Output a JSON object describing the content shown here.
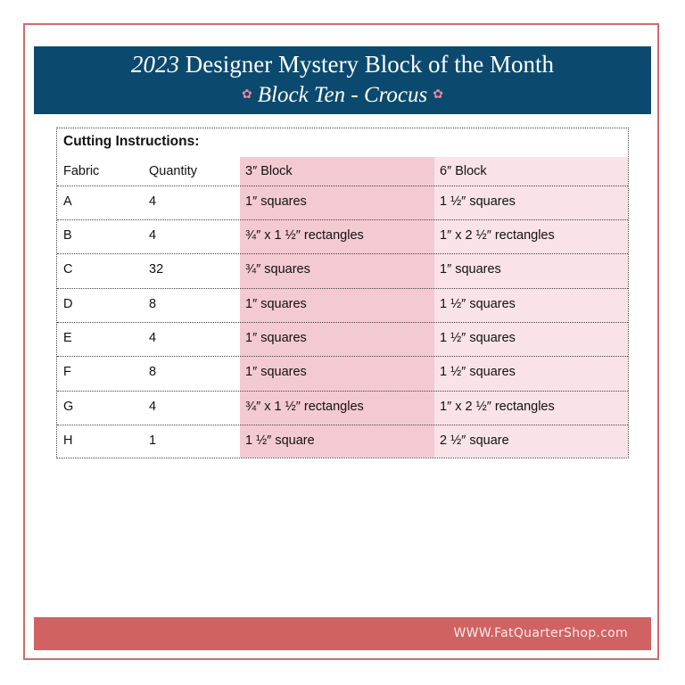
{
  "header": {
    "year": "2023",
    "title": "Designer Mystery Block of the Month",
    "subtitle": "Block Ten - Crocus",
    "flower_icon": "pink-flower-icon"
  },
  "table": {
    "title": "Cutting Instructions:",
    "columns": [
      "Fabric",
      "Quantity",
      "3″ Block",
      "6″ Block"
    ],
    "rows": [
      [
        "A",
        "4",
        "1″ squares",
        "1 ½″ squares"
      ],
      [
        "B",
        "4",
        "¾″ x 1 ½″ rectangles",
        "1″ x 2 ½″ rectangles"
      ],
      [
        "C",
        "32",
        "¾″ squares",
        "1″ squares"
      ],
      [
        "D",
        "8",
        "1″ squares",
        "1 ½″ squares"
      ],
      [
        "E",
        "4",
        "1″ squares",
        "1 ½″ squares"
      ],
      [
        "F",
        "8",
        "1″ squares",
        "1 ½″ squares"
      ],
      [
        "G",
        "4",
        "¾″ x 1 ½″ rectangles",
        "1″ x 2 ½″ rectangles"
      ],
      [
        "H",
        "1",
        "1 ½″ square",
        "2 ½″ square"
      ]
    ]
  },
  "footer": {
    "url": "WWW.FatQuarterShop.com"
  },
  "colors": {
    "banner": "#0b4a6e",
    "frame": "#d46a6a",
    "footer": "#d06262",
    "col3": "#f4cad2",
    "col6": "#f9e3e6"
  }
}
